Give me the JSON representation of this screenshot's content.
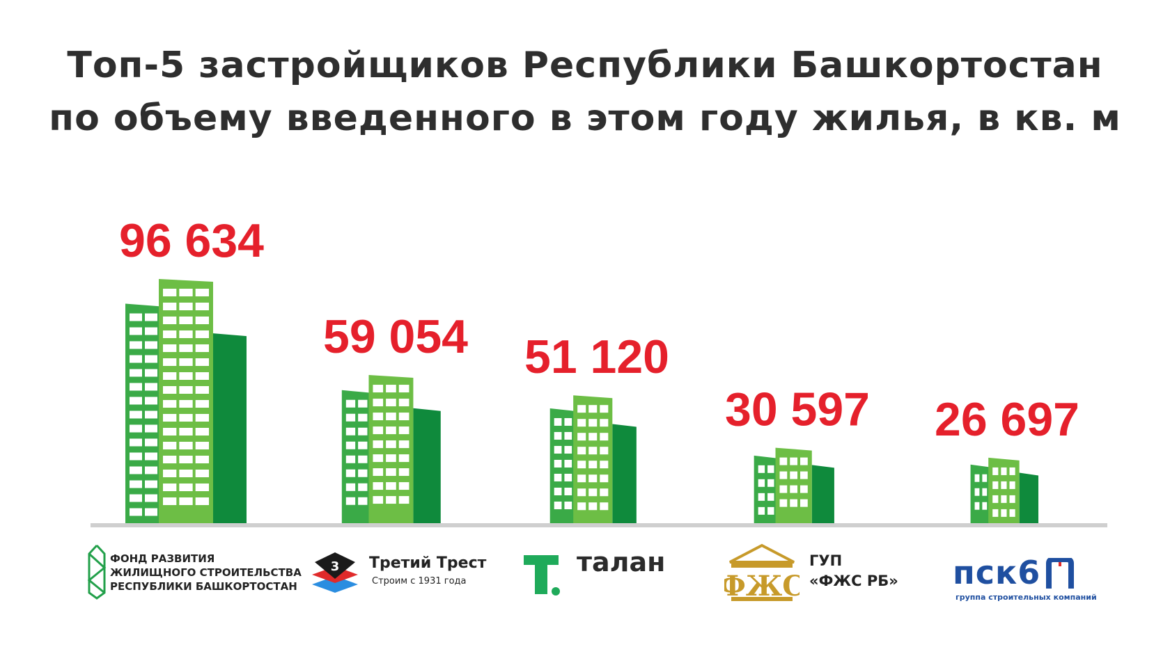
{
  "title_line1": "Топ-5 застройщиков Республики Башкортостан",
  "title_line2": "по объему введенного в этом году жилья, в кв. м",
  "colors": {
    "value_red": "#e5202b",
    "tower_light": "#6dbe45",
    "tower_mid": "#3aaa47",
    "tower_dark": "#0f8a3c",
    "baseline": "#cfcfcf",
    "title": "#2e2e2e"
  },
  "chart_data": {
    "type": "bar",
    "title": "Топ-5 застройщиков Республики Башкортостан по объему введенного в этом году жилья, в кв. м",
    "categories": [
      "Фонд развития жилищного строительства Республики Башкортостан",
      "Третий Трест",
      "Талан",
      "ГУП «ФЖС РБ»",
      "ПСК6"
    ],
    "values": [
      96634,
      59054,
      51120,
      30597,
      26697
    ],
    "value_labels": [
      "96 634",
      "59 054",
      "51 120",
      "30 597",
      "26 697"
    ],
    "bar_style": "building-icons"
  },
  "logos": {
    "fond": {
      "icon": "fond-house-outline-icon",
      "line1": "ФОНД РАЗВИТИЯ",
      "line2": "ЖИЛИЩНОГО СТРОИТЕЛЬСТВА",
      "line3": "РЕСПУБЛИКИ БАШКОРТОСТАН"
    },
    "trest": {
      "icon": "trest-stacked-diamond-icon",
      "badge": "3",
      "name": "Третий Трест",
      "tagline": "Строим с 1931 года"
    },
    "talan": {
      "icon": "talan-t-letter-icon",
      "name": "талан"
    },
    "fzhs": {
      "icon": "fzhs-gold-building-icon",
      "emblem_text": "ФЖС",
      "line1": "ГУП",
      "line2": "«ФЖС РБ»"
    },
    "psk": {
      "name": "пск6",
      "icon": "psk-arch-icon",
      "tagline": "группа строительных компаний"
    }
  }
}
